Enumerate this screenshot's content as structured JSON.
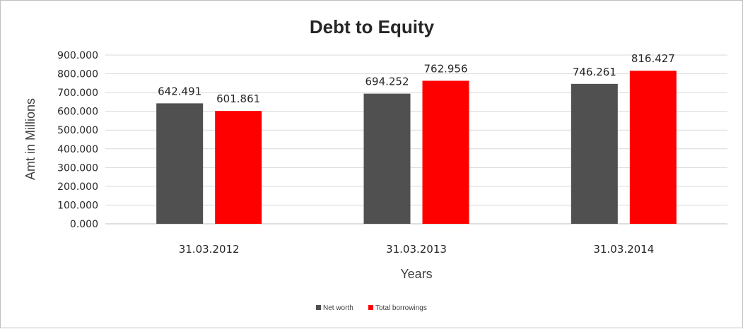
{
  "chart_data": {
    "type": "bar",
    "title": "Debt to Equity",
    "xlabel": "Years",
    "ylabel": "Amt in Millions",
    "categories": [
      "31.03.2012",
      "31.03.2013",
      "31.03.2014"
    ],
    "series": [
      {
        "name": "Net worth",
        "color": "#505050",
        "values": [
          642.491,
          694.252,
          746.261
        ],
        "labels": [
          "642.491",
          "694.252",
          "746.261"
        ]
      },
      {
        "name": "Total borrowings",
        "color": "#ff0000",
        "values": [
          601.861,
          762.956,
          816.427
        ],
        "labels": [
          "601.861",
          "762.956",
          "816.427"
        ]
      }
    ],
    "ylim": [
      0,
      900
    ],
    "yticks": [
      0,
      100,
      200,
      300,
      400,
      500,
      600,
      700,
      800,
      900
    ],
    "ytick_labels": [
      "0.000",
      "100.000",
      "200.000",
      "300.000",
      "400.000",
      "500.000",
      "600.000",
      "700.000",
      "800.000",
      "900.000"
    ],
    "grid": true,
    "legend_position": "bottom"
  }
}
